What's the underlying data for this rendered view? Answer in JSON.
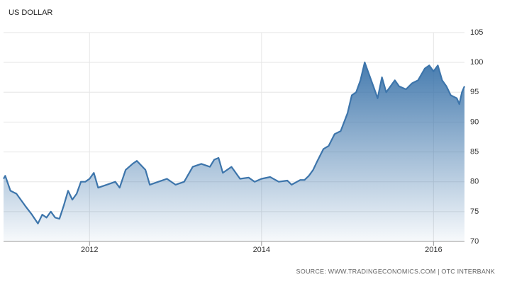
{
  "chart_data": {
    "type": "area",
    "title": "US DOLLAR",
    "source": "SOURCE: WWW.TRADINGECONOMICS.COM | OTC INTERBANK",
    "x": [
      2011.0,
      2011.02,
      2011.08,
      2011.15,
      2011.25,
      2011.33,
      2011.4,
      2011.45,
      2011.5,
      2011.55,
      2011.6,
      2011.65,
      2011.7,
      2011.75,
      2011.8,
      2011.85,
      2011.9,
      2011.95,
      2012.0,
      2012.05,
      2012.1,
      2012.2,
      2012.3,
      2012.35,
      2012.42,
      2012.5,
      2012.55,
      2012.65,
      2012.7,
      2012.8,
      2012.9,
      2013.0,
      2013.1,
      2013.2,
      2013.3,
      2013.4,
      2013.45,
      2013.5,
      2013.55,
      2013.65,
      2013.75,
      2013.85,
      2013.92,
      2014.0,
      2014.1,
      2014.2,
      2014.3,
      2014.35,
      2014.45,
      2014.5,
      2014.55,
      2014.6,
      2014.65,
      2014.72,
      2014.78,
      2014.85,
      2014.92,
      2015.0,
      2015.05,
      2015.1,
      2015.15,
      2015.2,
      2015.25,
      2015.3,
      2015.35,
      2015.4,
      2015.45,
      2015.55,
      2015.6,
      2015.68,
      2015.75,
      2015.82,
      2015.9,
      2015.95,
      2016.0,
      2016.05,
      2016.1,
      2016.15,
      2016.2,
      2016.27,
      2016.3,
      2016.33,
      2016.36
    ],
    "series": [
      {
        "name": "US Dollar",
        "color": "#3d75ab",
        "values": [
          80.5,
          81,
          78.5,
          78,
          76,
          74.5,
          73,
          74.5,
          74,
          75,
          74,
          73.8,
          76,
          78.5,
          77,
          78,
          80,
          80,
          80.5,
          81.5,
          79,
          79.5,
          80,
          79,
          82,
          83,
          83.5,
          82,
          79.5,
          80,
          80.5,
          79.5,
          80,
          82.5,
          83,
          82.5,
          83.7,
          84,
          81.5,
          82.5,
          80.5,
          80.7,
          80,
          80.5,
          80.8,
          80,
          80.2,
          79.5,
          80.3,
          80.3,
          81,
          82,
          83.5,
          85.5,
          86,
          88,
          88.5,
          91.5,
          94.5,
          95,
          97,
          100,
          98,
          96,
          94,
          97.5,
          95,
          97,
          96,
          95.5,
          96.5,
          97,
          99,
          99.5,
          98.5,
          99.5,
          97,
          96,
          94.5,
          94,
          93,
          95,
          96
        ]
      }
    ],
    "xlim": [
      2011,
      2016.36
    ],
    "xticks": [
      2012,
      2014,
      2016
    ],
    "ylim": [
      70,
      105
    ],
    "yticks": [
      70,
      75,
      80,
      85,
      90,
      95,
      100,
      105
    ],
    "grid": true
  }
}
